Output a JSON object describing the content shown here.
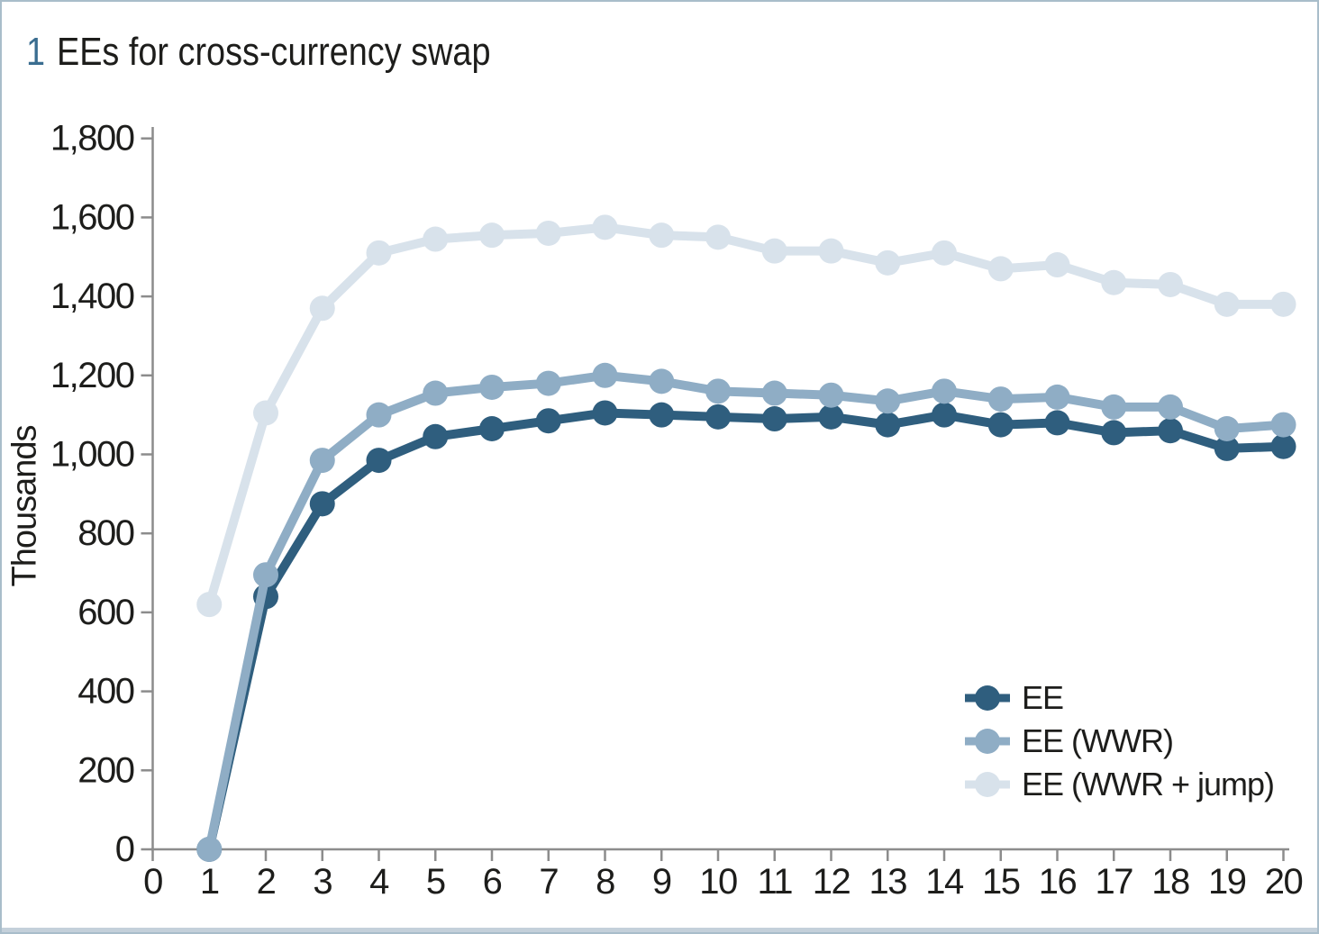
{
  "page": {
    "background": "#ffffff",
    "border_color": "#a9bdca",
    "bottom_bar_color": "#c4d0da"
  },
  "title": {
    "number": "1",
    "text": "EEs for cross-currency swap",
    "number_color": "#3a6d90",
    "text_color": "#1d1d1b"
  },
  "chart_data": {
    "type": "line",
    "x": [
      1,
      2,
      3,
      4,
      5,
      6,
      7,
      8,
      9,
      10,
      11,
      12,
      13,
      14,
      15,
      16,
      17,
      18,
      19,
      20
    ],
    "series": [
      {
        "name": "EE",
        "color": "#2f5e7e",
        "values": [
          0,
          640,
          875,
          985,
          1045,
          1065,
          1085,
          1105,
          1100,
          1095,
          1090,
          1095,
          1075,
          1100,
          1075,
          1080,
          1055,
          1060,
          1015,
          1020
        ]
      },
      {
        "name": "EE (WWR)",
        "color": "#8fadc5",
        "values": [
          0,
          695,
          985,
          1100,
          1155,
          1170,
          1180,
          1200,
          1185,
          1160,
          1155,
          1150,
          1135,
          1160,
          1140,
          1145,
          1120,
          1120,
          1065,
          1075
        ]
      },
      {
        "name": "EE (WWR + jump)",
        "color": "#d8e2eb",
        "values": [
          620,
          1105,
          1370,
          1510,
          1545,
          1555,
          1560,
          1575,
          1555,
          1550,
          1515,
          1515,
          1485,
          1510,
          1470,
          1480,
          1435,
          1430,
          1380,
          1380
        ]
      }
    ],
    "xlabel": "",
    "ylabel": "Thousands",
    "xlim": [
      0,
      20
    ],
    "ylim": [
      0,
      1800
    ],
    "x_tick_labels": [
      "0",
      "1",
      "2",
      "3",
      "4",
      "5",
      "6",
      "7",
      "8",
      "9",
      "10",
      "11",
      "12",
      "13",
      "14",
      "15",
      "16",
      "17",
      "18",
      "19",
      "20"
    ],
    "y_tick_values": [
      0,
      200,
      400,
      600,
      800,
      1000,
      1200,
      1400,
      1600,
      1800
    ],
    "y_tick_labels": [
      "0",
      "200",
      "400",
      "600",
      "800",
      "1,000",
      "1,200",
      "1,400",
      "1,600",
      "1,800"
    ],
    "grid": false,
    "legend_position": "lower right",
    "marker": "circle",
    "axis_color": "#8c8c8c",
    "tick_label_color": "#1d1d1b"
  }
}
